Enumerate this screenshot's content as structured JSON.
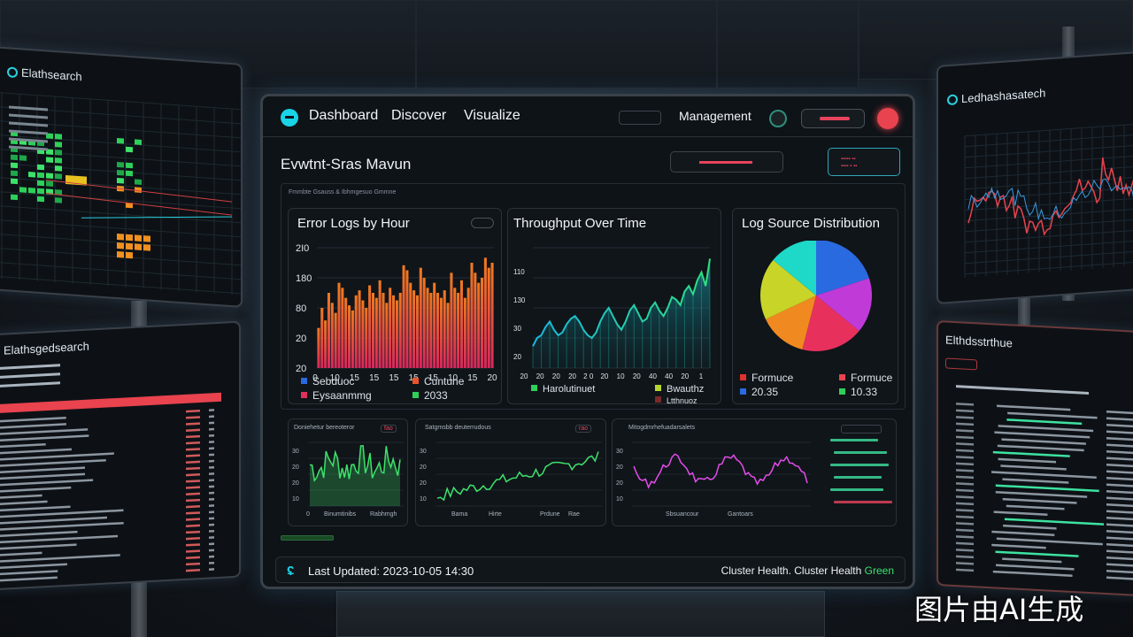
{
  "nav": {
    "items": [
      "Dashboard",
      "Discover",
      "Visualize"
    ],
    "management_label": "Management"
  },
  "dashboard": {
    "title": "Evwtnt-Sras Mavun"
  },
  "left_top_monitor": {
    "title": "Elathsearch"
  },
  "left_bottom_monitor": {
    "title": "Elathsgedsearch"
  },
  "right_top_monitor": {
    "title": "Ledhashasatech"
  },
  "right_bottom_monitor": {
    "title": "Elthdsstrthue"
  },
  "error_logs": {
    "title": "Error Logs by Hour",
    "legend": [
      {
        "label": "Sebduoc",
        "color": "#2a6ae0"
      },
      {
        "label": "Cuntune",
        "color": "#e8552c"
      },
      {
        "label": "Eysaanmmg",
        "color": "#e0305c"
      },
      {
        "label": "2033",
        "color": "#2ed05a"
      }
    ]
  },
  "throughput": {
    "title": "Throughput Over Time",
    "legend": [
      {
        "label": "Harolutinuet",
        "color": "#2ed05a"
      },
      {
        "label": "Bwauthz",
        "color": "#b4d62e"
      },
      {
        "label": "Ltthnuoz",
        "color": "#7a2a2a"
      }
    ]
  },
  "log_source": {
    "title": "Log Source Distribution",
    "legend": [
      {
        "label": "Formuce",
        "color": "#e0302c"
      },
      {
        "label": "Formuce",
        "color": "#e8434e"
      },
      {
        "label": "20.35",
        "color": "#2a6ae0"
      },
      {
        "label": "10.33",
        "color": "#2ed05a"
      }
    ]
  },
  "mini_charts": [
    {
      "label": "Doniehetur bereoteror",
      "badge": "fao",
      "x_labels": [
        "0",
        "Binumtinibs",
        "Rabhmgh"
      ],
      "color": "#3ee26a"
    },
    {
      "label": "Satgmsbb deuterrudous",
      "badge": "rao",
      "x_labels": [
        "Bama",
        "Hirte",
        "Prdune",
        "Rae"
      ],
      "color": "#3ee26a"
    },
    {
      "label": "Mitogdmrhefuadarsalets",
      "badge": "",
      "x_labels": [
        "Sbsuancour",
        "Gantoars"
      ],
      "color": "#e24ce8"
    }
  ],
  "footer": {
    "last_updated": "Last Updated: 2023-10-05 14:30",
    "cluster_health_label": "Cluster Health.  Cluster Health",
    "cluster_status": "Green"
  },
  "watermark": "图片由AI生成",
  "chart_data": [
    {
      "type": "bar",
      "title": "Error Logs by Hour",
      "ylabels": [
        "2I0",
        "180",
        "80",
        "20",
        "20"
      ],
      "xlabels": [
        "0",
        "10",
        "15",
        "15",
        "15",
        "15",
        "15",
        "10",
        "15",
        "20"
      ],
      "values": [
        80,
        120,
        95,
        150,
        130,
        110,
        170,
        160,
        140,
        125,
        115,
        145,
        155,
        135,
        120,
        165,
        150,
        140,
        175,
        150,
        130,
        160,
        145,
        135,
        150,
        205,
        195,
        170,
        155,
        145,
        200,
        180,
        160,
        150,
        170,
        150,
        140,
        155,
        130,
        190,
        160,
        150,
        175,
        140,
        160,
        210,
        190,
        170,
        180,
        220,
        200,
        210
      ],
      "ylim": [
        0,
        240
      ]
    },
    {
      "type": "area",
      "title": "Throughput Over Time",
      "ylabels": [
        "110",
        "130",
        "30",
        "20"
      ],
      "xlabels": [
        "20",
        "20",
        "20",
        "20",
        "2 0",
        "20",
        "10",
        "20",
        "40",
        "40",
        "20",
        "1"
      ],
      "values": [
        40,
        55,
        60,
        75,
        85,
        70,
        60,
        65,
        80,
        90,
        95,
        85,
        70,
        60,
        55,
        65,
        85,
        100,
        110,
        95,
        80,
        70,
        85,
        105,
        115,
        100,
        85,
        90,
        110,
        120,
        105,
        95,
        110,
        130,
        125,
        115,
        140,
        150,
        135,
        160,
        175,
        150,
        200
      ],
      "ylim": [
        0,
        220
      ]
    },
    {
      "type": "pie",
      "title": "Log Source Distribution",
      "values": [
        20,
        16,
        18,
        14,
        18,
        14
      ],
      "colors": [
        "#2a6ae0",
        "#c03ad8",
        "#e8305c",
        "#f08a20",
        "#c8d428",
        "#1ed8c8"
      ]
    }
  ]
}
